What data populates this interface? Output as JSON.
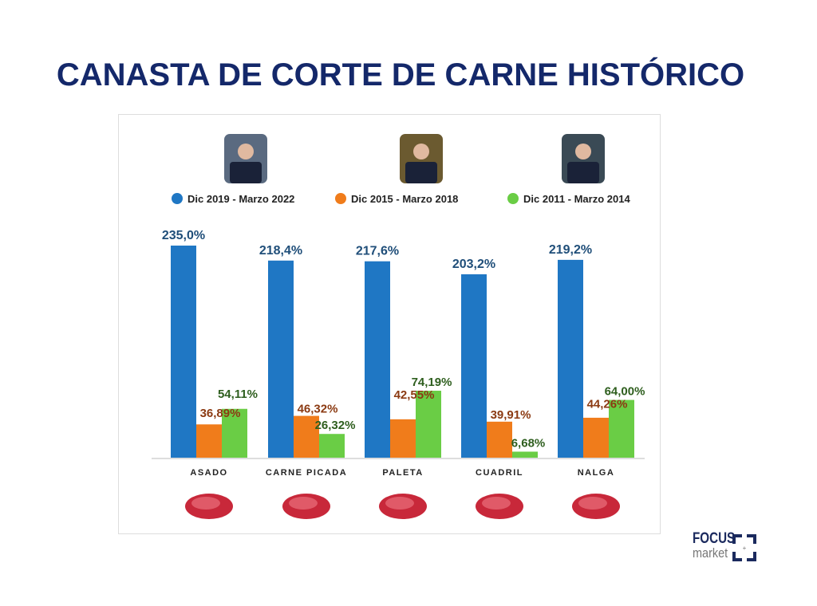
{
  "title": "CANASTA DE CORTE DE CARNE HISTÓRICO",
  "logo": {
    "line1": "FOCUS",
    "line2": "market"
  },
  "chart_data": {
    "type": "bar",
    "title": "CANASTA DE CORTE DE CARNE HISTÓRICO",
    "categories": [
      "ASADO",
      "CARNE PICADA",
      "PALETA",
      "CUADRIL",
      "NALGA"
    ],
    "series": [
      {
        "name": "Dic 2019 - Marzo 2022",
        "color": "#1f77c4",
        "label_color": "#1f4e79",
        "values": [
          235.0,
          218.4,
          217.6,
          203.2,
          219.2
        ],
        "labels": [
          "235,0%",
          "218,4%",
          "217,6%",
          "203,2%",
          "219,2%"
        ]
      },
      {
        "name": "Dic 2015 - Marzo 2018",
        "color": "#f07c1b",
        "label_color": "#8b3a12",
        "values": [
          36.89,
          46.32,
          42.55,
          39.91,
          44.26
        ],
        "labels": [
          "36,89%",
          "46,32%",
          "42,55%",
          "39,91%",
          "44,26%"
        ]
      },
      {
        "name": "Dic 2011 - Marzo 2014",
        "color": "#6acd45",
        "label_color": "#2e5e1e",
        "values": [
          54.11,
          26.32,
          74.19,
          6.68,
          64.0
        ],
        "labels": [
          "54,11%",
          "26,32%",
          "74,19%",
          "6,68%",
          "64,00%"
        ]
      }
    ],
    "ylim": [
      0,
      240
    ],
    "grid": false,
    "legend_position": "top"
  }
}
